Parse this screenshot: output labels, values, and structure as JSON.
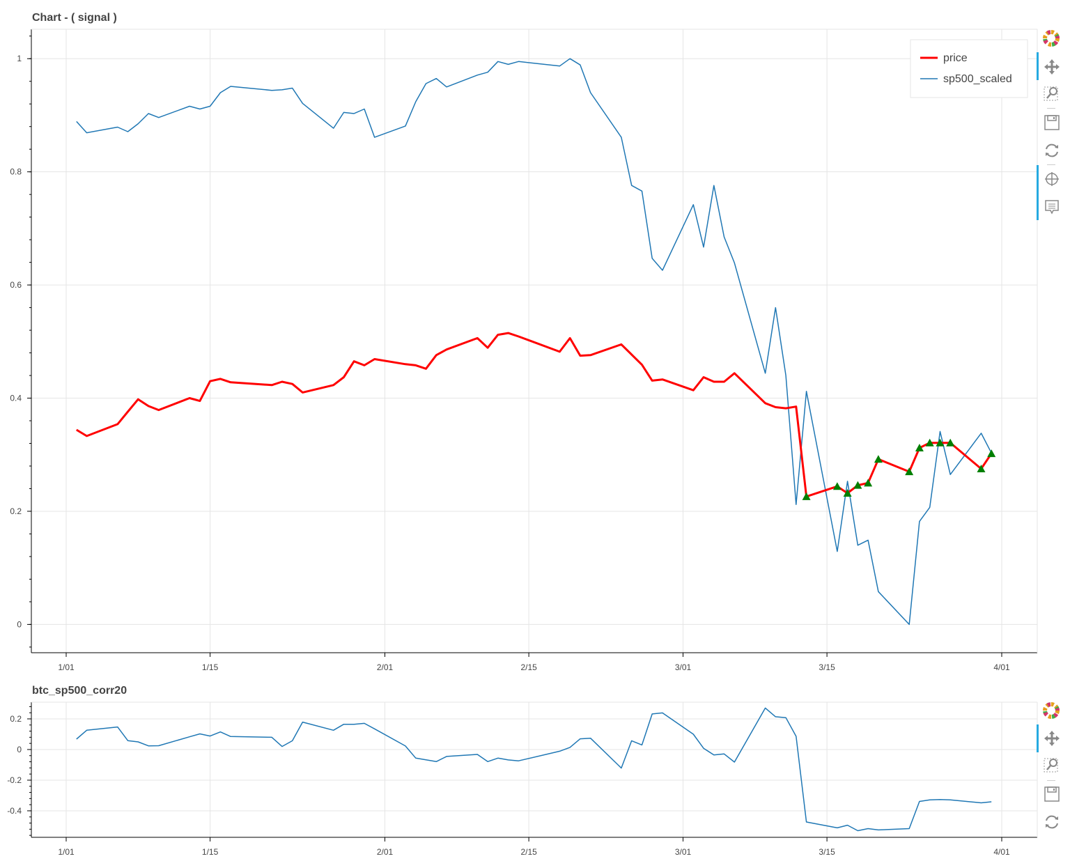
{
  "chart_data": [
    {
      "type": "line",
      "title": "Chart - ( signal )",
      "xlabel": "",
      "ylabel": "",
      "x_ticks": [
        "1/01",
        "1/15",
        "2/01",
        "2/15",
        "3/01",
        "3/15",
        "4/01"
      ],
      "y_ticks": [
        "0",
        "0.2",
        "0.4",
        "0.6",
        "0.8",
        "1"
      ],
      "ylim": [
        -0.05,
        1.052
      ],
      "grid": true,
      "legend_position": "top-right",
      "x": [
        "1/02",
        "1/03",
        "1/06",
        "1/07",
        "1/08",
        "1/09",
        "1/10",
        "1/13",
        "1/14",
        "1/15",
        "1/16",
        "1/17",
        "1/21",
        "1/22",
        "1/23",
        "1/24",
        "1/27",
        "1/28",
        "1/29",
        "1/30",
        "1/31",
        "2/03",
        "2/04",
        "2/05",
        "2/06",
        "2/07",
        "2/10",
        "2/11",
        "2/12",
        "2/13",
        "2/14",
        "2/18",
        "2/19",
        "2/20",
        "2/21",
        "2/24",
        "2/25",
        "2/26",
        "2/27",
        "2/28",
        "3/02",
        "3/03",
        "3/04",
        "3/05",
        "3/06",
        "3/09",
        "3/10",
        "3/11",
        "3/12",
        "3/13",
        "3/16",
        "3/17",
        "3/18",
        "3/19",
        "3/20",
        "3/23",
        "3/24",
        "3/25",
        "3/26",
        "3/27",
        "3/30",
        "3/31"
      ],
      "series": [
        {
          "name": "price",
          "color": "#ff0000",
          "values": [
            0.344,
            0.333,
            0.354,
            0.376,
            0.398,
            0.386,
            0.379,
            0.4,
            0.395,
            0.43,
            0.434,
            0.428,
            0.423,
            0.429,
            0.425,
            0.41,
            0.423,
            0.437,
            0.465,
            0.458,
            0.469,
            0.46,
            0.458,
            0.452,
            0.476,
            0.486,
            0.506,
            0.489,
            0.512,
            0.515,
            0.509,
            0.482,
            0.506,
            0.475,
            0.476,
            0.495,
            0.477,
            0.459,
            0.431,
            0.433,
            0.414,
            0.437,
            0.429,
            0.429,
            0.444,
            0.391,
            0.384,
            0.382,
            0.385,
            0.226,
            0.244,
            0.232,
            0.246,
            0.25,
            0.292,
            0.27,
            0.312,
            0.321,
            0.321,
            0.321,
            0.275,
            0.302
          ]
        },
        {
          "name": "sp500_scaled",
          "color": "#1f77b4",
          "values": [
            0.889,
            0.869,
            0.879,
            0.871,
            0.885,
            0.903,
            0.896,
            0.916,
            0.911,
            0.916,
            0.94,
            0.951,
            0.944,
            0.945,
            0.948,
            0.921,
            0.877,
            0.905,
            0.903,
            0.911,
            0.861,
            0.881,
            0.924,
            0.956,
            0.965,
            0.95,
            0.971,
            0.976,
            0.995,
            0.99,
            0.995,
            0.987,
            1.0,
            0.989,
            0.94,
            0.861,
            0.776,
            0.766,
            0.647,
            0.626,
            0.742,
            0.667,
            0.776,
            0.685,
            0.639,
            0.444,
            0.56,
            0.44,
            0.212,
            0.412,
            0.129,
            0.253,
            0.14,
            0.149,
            0.058,
            0.0,
            0.182,
            0.207,
            0.341,
            0.265,
            0.338,
            0.303
          ]
        }
      ],
      "markers": {
        "name": "signal",
        "shape": "triangle",
        "color": "#007f00",
        "x": [
          "3/13",
          "3/16",
          "3/17",
          "3/18",
          "3/19",
          "3/20",
          "3/23",
          "3/24",
          "3/25",
          "3/26",
          "3/27",
          "3/30",
          "3/31"
        ],
        "values": [
          0.226,
          0.244,
          0.232,
          0.246,
          0.25,
          0.292,
          0.27,
          0.312,
          0.321,
          0.321,
          0.321,
          0.275,
          0.302
        ]
      }
    },
    {
      "type": "line",
      "title": "btc_sp500_corr20",
      "xlabel": "",
      "ylabel": "",
      "x_ticks": [
        "1/01",
        "1/15",
        "2/01",
        "2/15",
        "3/01",
        "3/15",
        "4/01"
      ],
      "y_ticks": [
        "-0.4",
        "-0.2",
        "0",
        "0.2"
      ],
      "ylim": [
        -0.573,
        0.309
      ],
      "grid": true,
      "x": [
        "1/02",
        "1/03",
        "1/06",
        "1/07",
        "1/08",
        "1/09",
        "1/10",
        "1/13",
        "1/14",
        "1/15",
        "1/16",
        "1/17",
        "1/21",
        "1/22",
        "1/23",
        "1/24",
        "1/27",
        "1/28",
        "1/29",
        "1/30",
        "1/31",
        "2/03",
        "2/04",
        "2/05",
        "2/06",
        "2/07",
        "2/10",
        "2/11",
        "2/12",
        "2/13",
        "2/14",
        "2/18",
        "2/19",
        "2/20",
        "2/21",
        "2/24",
        "2/25",
        "2/26",
        "2/27",
        "2/28",
        "3/02",
        "3/03",
        "3/04",
        "3/05",
        "3/06",
        "3/09",
        "3/10",
        "3/11",
        "3/12",
        "3/13",
        "3/16",
        "3/17",
        "3/18",
        "3/19",
        "3/20",
        "3/23",
        "3/24",
        "3/25",
        "3/26",
        "3/27",
        "3/30",
        "3/31"
      ],
      "series": [
        {
          "name": "btc_sp500_corr20",
          "color": "#1f77b4",
          "values": [
            0.068,
            0.126,
            0.147,
            0.058,
            0.05,
            0.024,
            0.025,
            0.083,
            0.102,
            0.088,
            0.115,
            0.085,
            0.08,
            0.02,
            0.057,
            0.179,
            0.126,
            0.165,
            0.165,
            0.171,
            0.135,
            0.023,
            -0.056,
            -0.067,
            -0.079,
            -0.045,
            -0.032,
            -0.079,
            -0.056,
            -0.068,
            -0.074,
            -0.011,
            0.014,
            0.07,
            0.074,
            -0.121,
            0.057,
            0.03,
            0.232,
            0.239,
            0.1,
            0.008,
            -0.035,
            -0.029,
            -0.082,
            0.271,
            0.214,
            0.208,
            0.086,
            -0.473,
            -0.511,
            -0.494,
            -0.53,
            -0.516,
            -0.525,
            -0.516,
            -0.339,
            -0.329,
            -0.326,
            -0.329,
            -0.348,
            -0.341
          ]
        }
      ]
    }
  ],
  "toolbars": [
    {
      "tools": [
        "bokeh-logo",
        "pan",
        "box-zoom",
        "save",
        "reset",
        "crosshair",
        "hover"
      ]
    },
    {
      "tools": [
        "bokeh-logo",
        "pan",
        "box-zoom",
        "save",
        "reset"
      ]
    }
  ]
}
